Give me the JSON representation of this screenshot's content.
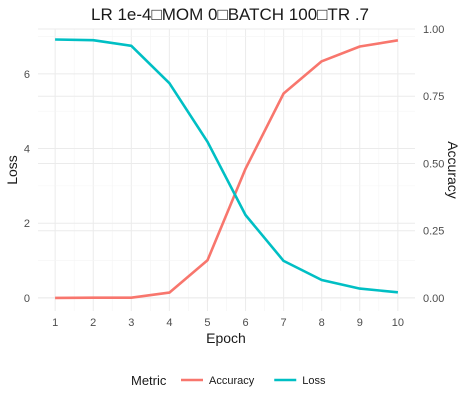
{
  "chart_data": {
    "type": "line",
    "title": "LR 1e-4□MOM 0□BATCH 100□TR .7",
    "xlabel": "Epoch",
    "ylabel": "Loss",
    "y2label": "Accuracy",
    "x": [
      1,
      2,
      3,
      4,
      5,
      6,
      7,
      8,
      9,
      10
    ],
    "xticks": [
      "1",
      "2",
      "3",
      "4",
      "5",
      "6",
      "7",
      "8",
      "9",
      "10"
    ],
    "ylim": [
      -0.35,
      7.2
    ],
    "yticks": [
      "0",
      "2",
      "4",
      "6"
    ],
    "y2lim": [
      -0.0486,
      1.0
    ],
    "y2ticks": [
      "0.00",
      "0.25",
      "0.50",
      "0.75",
      "1.00"
    ],
    "grid": true,
    "legend_position": "bottom",
    "legend_title": "Metric",
    "series": [
      {
        "name": "Accuracy",
        "axis": "right",
        "color": "#F8766D",
        "values": [
          0.0,
          0.001,
          0.001,
          0.02,
          0.14,
          0.48,
          0.76,
          0.88,
          0.935,
          0.958
        ]
      },
      {
        "name": "Loss",
        "axis": "left",
        "color": "#00BFC4",
        "values": [
          6.92,
          6.9,
          6.75,
          5.75,
          4.18,
          2.22,
          0.99,
          0.48,
          0.25,
          0.15
        ]
      }
    ]
  }
}
